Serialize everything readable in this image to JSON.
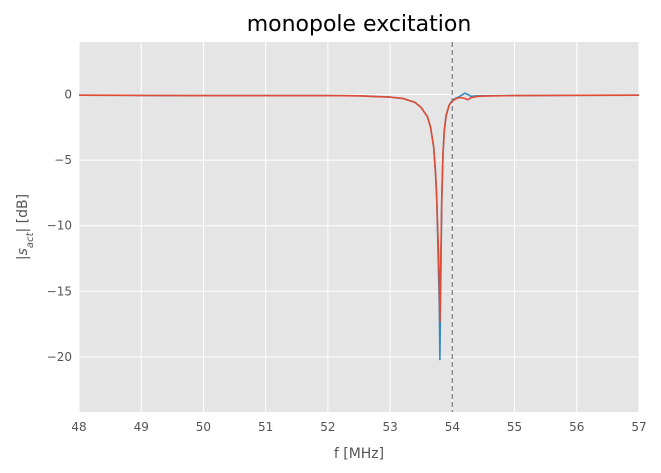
{
  "chart_data": {
    "type": "line",
    "title": "monopole excitation",
    "xlabel": "f [MHz]",
    "ylabel_prefix": "|",
    "ylabel_symbol": "s",
    "ylabel_subscript": "act",
    "ylabel_suffix": "| [dB]",
    "xlim": [
      48,
      57
    ],
    "ylim": [
      -24.2,
      4
    ],
    "xticks": [
      48,
      49,
      50,
      51,
      52,
      53,
      54,
      55,
      56,
      57
    ],
    "yticks": [
      0,
      -5,
      -10,
      -15,
      -20
    ],
    "ytick_labels": [
      "0",
      "−5",
      "−10",
      "−15",
      "−20"
    ],
    "grid": true,
    "vline": {
      "x": 54.0,
      "style": "dashed",
      "color": "#808080"
    },
    "colors": {
      "background": "#e5e5e5",
      "grid": "#ffffff"
    },
    "series": [
      {
        "color": "#348abd",
        "x": [
          48.0,
          49.0,
          50.0,
          51.0,
          52.0,
          52.5,
          53.0,
          53.2,
          53.4,
          53.5,
          53.6,
          53.65,
          53.7,
          53.73,
          53.75,
          53.77,
          53.79,
          53.8,
          53.81,
          53.83,
          53.85,
          53.87,
          53.9,
          53.95,
          54.0,
          54.05,
          54.1,
          54.15,
          54.2,
          54.25,
          54.3,
          54.4,
          54.5,
          55.0,
          56.0,
          57.0
        ],
        "y": [
          -0.05,
          -0.07,
          -0.08,
          -0.08,
          -0.08,
          -0.1,
          -0.2,
          -0.3,
          -0.6,
          -1.0,
          -1.7,
          -2.5,
          -4.0,
          -6.0,
          -8.0,
          -12.0,
          -16.0,
          -20.2,
          -16.0,
          -8.0,
          -4.5,
          -2.8,
          -1.6,
          -0.8,
          -0.45,
          -0.3,
          -0.2,
          -0.05,
          0.1,
          0.0,
          -0.15,
          -0.1,
          -0.1,
          -0.08,
          -0.06,
          -0.05
        ]
      },
      {
        "color": "#e24a33",
        "x": [
          48.0,
          49.0,
          50.0,
          51.0,
          52.0,
          52.5,
          53.0,
          53.2,
          53.4,
          53.5,
          53.6,
          53.65,
          53.7,
          53.73,
          53.75,
          53.77,
          53.79,
          53.8,
          53.81,
          53.83,
          53.85,
          53.87,
          53.9,
          53.95,
          54.0,
          54.05,
          54.1,
          54.15,
          54.2,
          54.25,
          54.3,
          54.4,
          54.5,
          55.0,
          56.0,
          57.0
        ],
        "y": [
          -0.05,
          -0.07,
          -0.08,
          -0.08,
          -0.08,
          -0.1,
          -0.2,
          -0.3,
          -0.6,
          -1.0,
          -1.7,
          -2.5,
          -4.0,
          -6.0,
          -8.0,
          -11.0,
          -14.0,
          -17.3,
          -14.0,
          -8.0,
          -4.5,
          -2.8,
          -1.6,
          -0.8,
          -0.5,
          -0.35,
          -0.25,
          -0.25,
          -0.3,
          -0.4,
          -0.25,
          -0.15,
          -0.12,
          -0.08,
          -0.06,
          -0.05
        ]
      }
    ]
  }
}
